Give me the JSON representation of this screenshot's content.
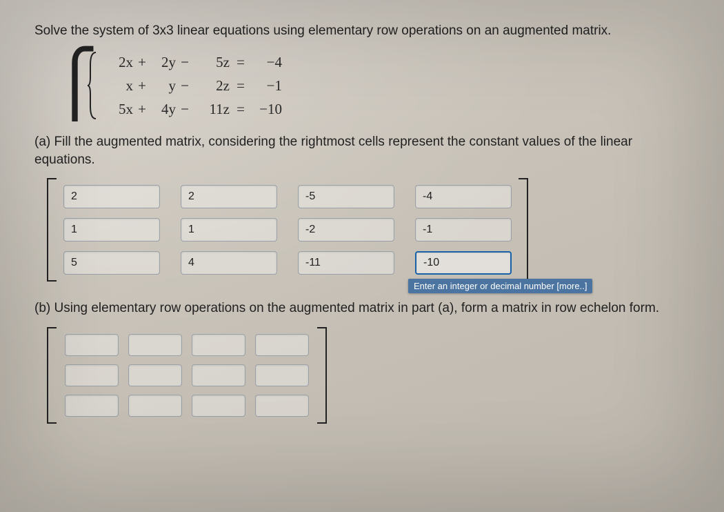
{
  "prompt_main": "Solve the system of 3x3 linear equations using elementary row operations on an augmented matrix.",
  "equations": {
    "row1": {
      "x": "2x",
      "op1": "+",
      "y": "2y",
      "op2": "−",
      "z": "5z",
      "eq": "=",
      "rhs": "−4"
    },
    "row2": {
      "x": "x",
      "op1": "+",
      "y": "y",
      "op2": "−",
      "z": "2z",
      "eq": "=",
      "rhs": "−1"
    },
    "row3": {
      "x": "5x",
      "op1": "+",
      "y": "4y",
      "op2": "−",
      "z": "11z",
      "eq": "=",
      "rhs": "−10"
    }
  },
  "part_a_prompt": "(a) Fill the augmented matrix, considering the rightmost cells represent the constant values of the linear equations.",
  "matrix_a": {
    "rows": [
      [
        "2",
        "2",
        "-5",
        "-4"
      ],
      [
        "1",
        "1",
        "-2",
        "-1"
      ],
      [
        "5",
        "4",
        "-11",
        "-10"
      ]
    ],
    "focused_row": 2,
    "focused_col": 3
  },
  "tooltip_text": "Enter an integer or decimal number [more..]",
  "part_b_prompt": "(b) Using elementary row operations on the augmented matrix in part (a), form a matrix in row echelon form.",
  "matrix_b": {
    "rows": [
      [
        "",
        "",
        "",
        ""
      ],
      [
        "",
        "",
        "",
        ""
      ],
      [
        "",
        "",
        "",
        ""
      ]
    ]
  }
}
